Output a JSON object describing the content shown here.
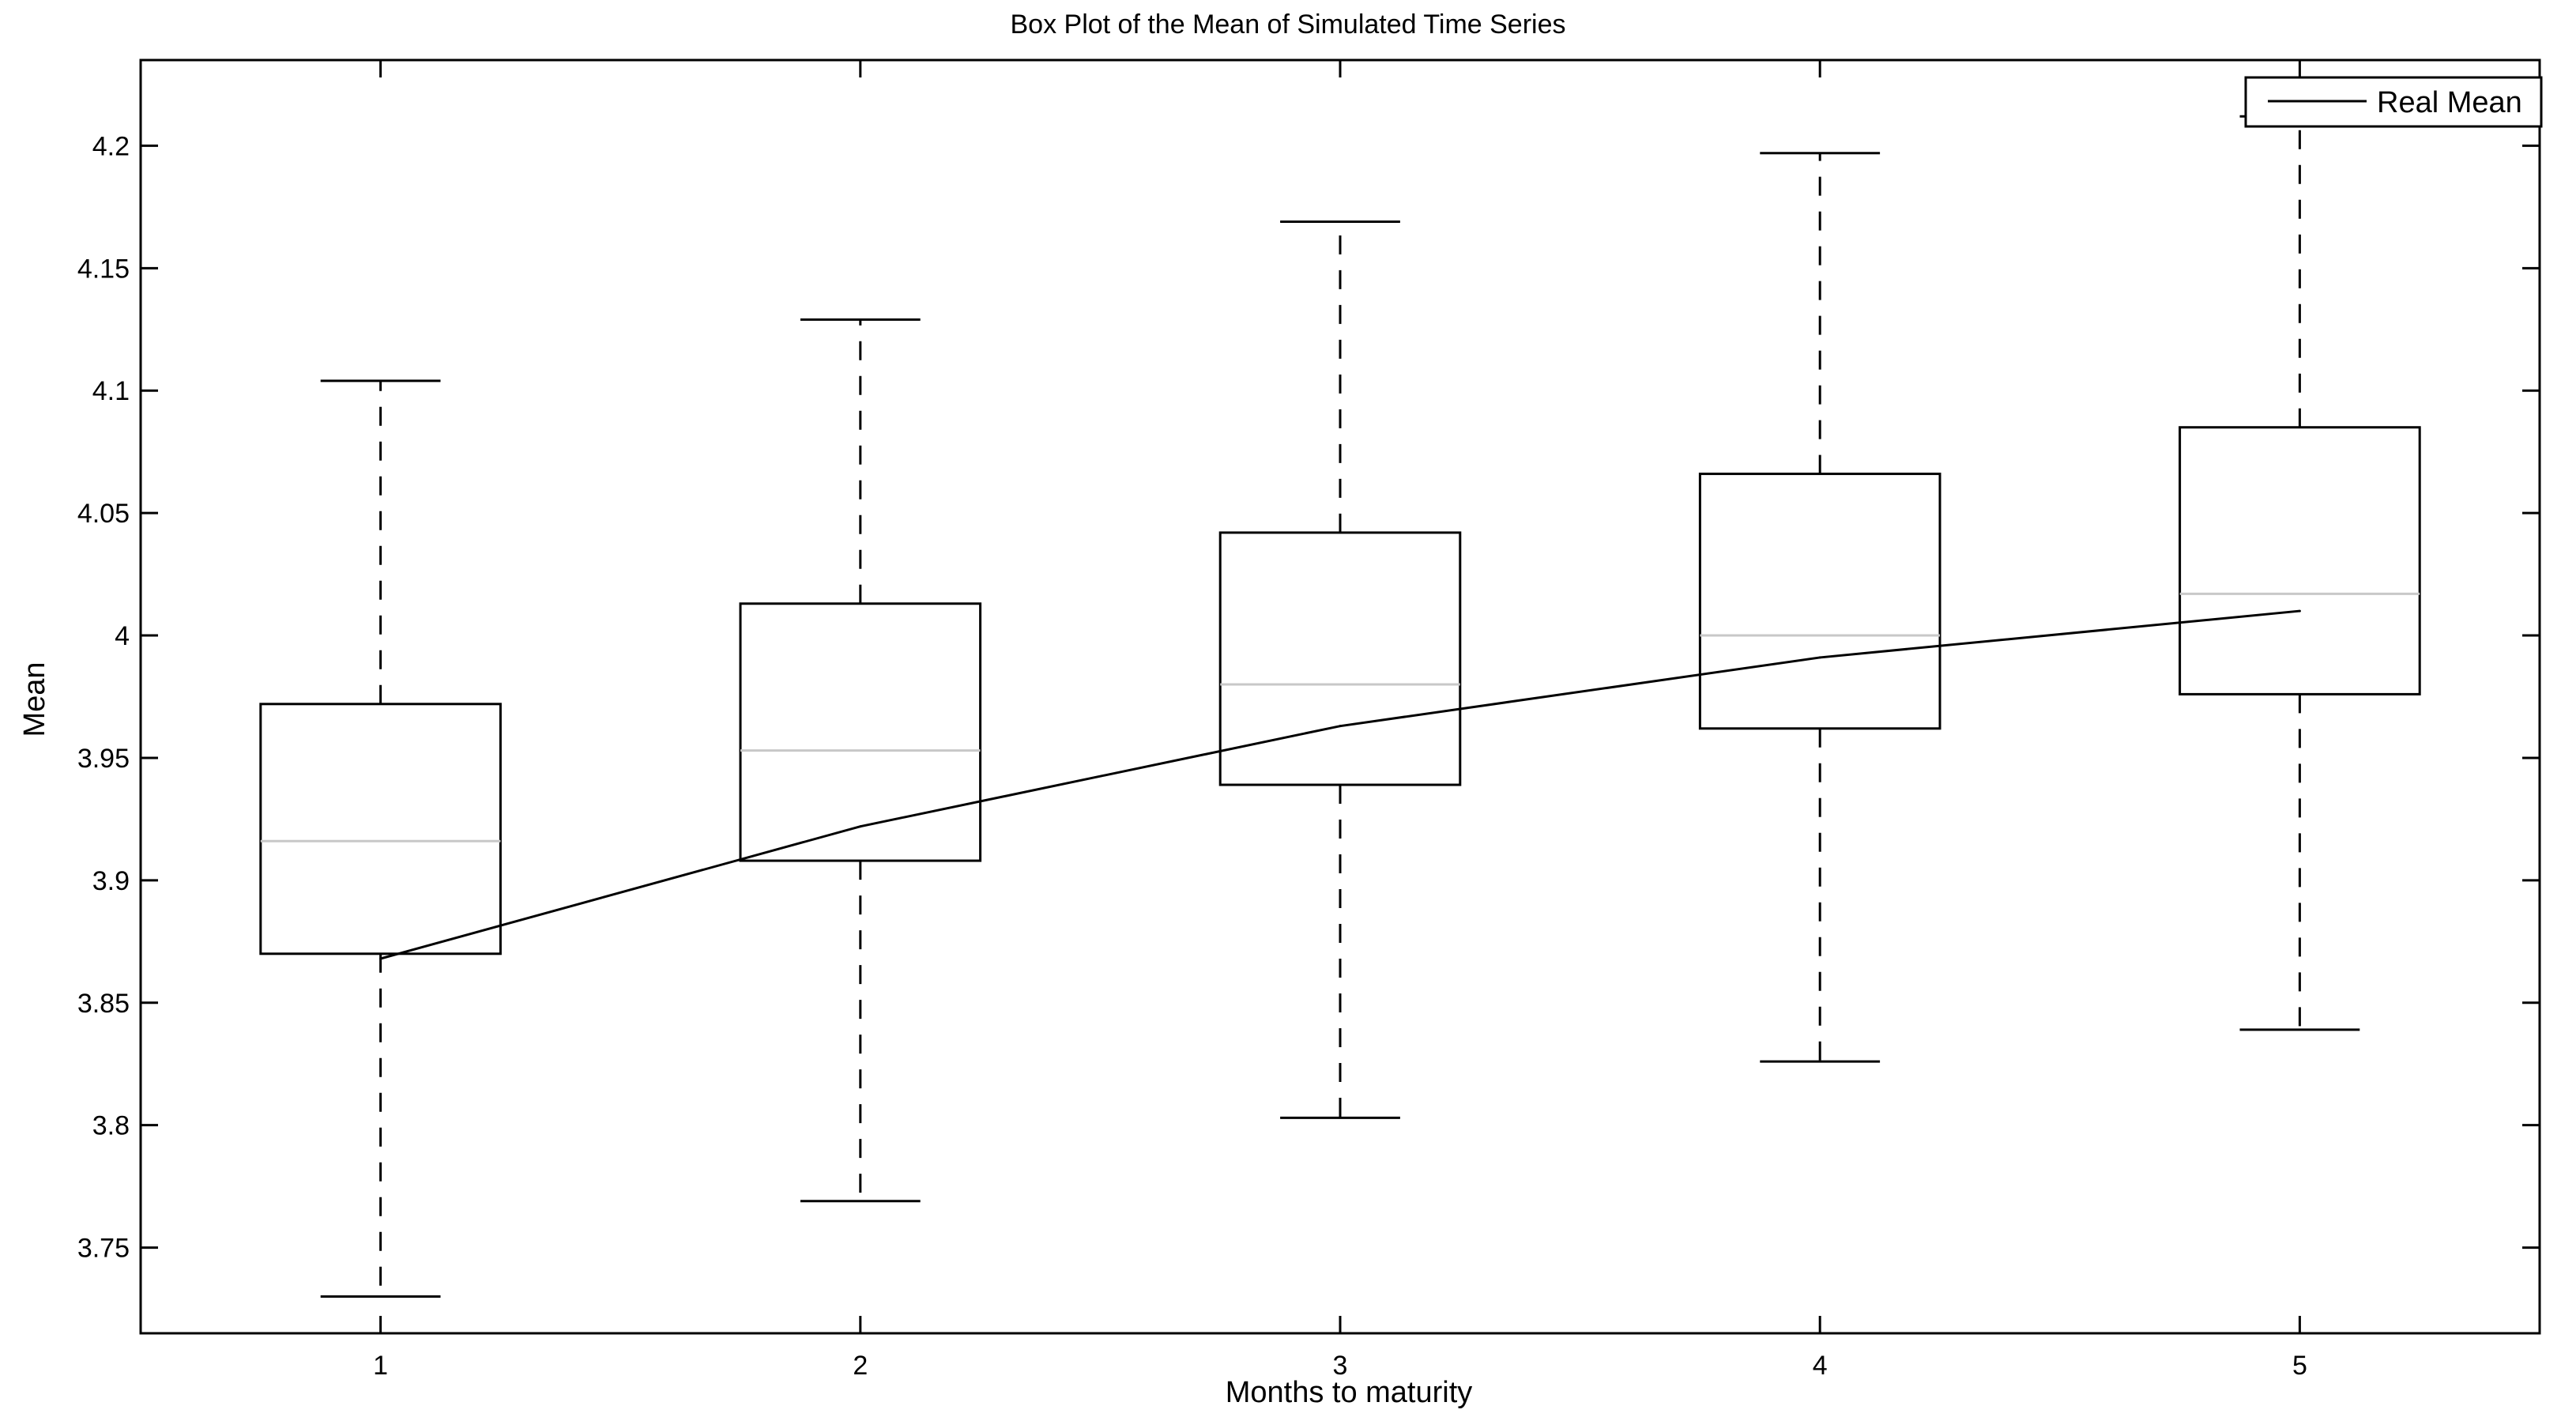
{
  "chart_data": {
    "type": "box",
    "title": "Box Plot of the Mean of Simulated Time Series",
    "xlabel": "Months to maturity",
    "ylabel": "Mean",
    "categories": [
      "1",
      "2",
      "3",
      "4",
      "5"
    ],
    "xlim": [
      0.5,
      5.5
    ],
    "ylim": [
      3.715,
      4.235
    ],
    "yticks": [
      3.75,
      3.8,
      3.85,
      3.9,
      3.95,
      4,
      4.05,
      4.1,
      4.15,
      4.2
    ],
    "ytick_labels": [
      "3.75",
      "3.8",
      "3.85",
      "3.9",
      "3.95",
      "4",
      "4.05",
      "4.1",
      "4.15",
      "4.2"
    ],
    "boxes": [
      {
        "category": "1",
        "lower_whisker": 3.73,
        "q1": 3.87,
        "median": 3.916,
        "q3": 3.972,
        "upper_whisker": 4.104
      },
      {
        "category": "2",
        "lower_whisker": 3.769,
        "q1": 3.908,
        "median": 3.953,
        "q3": 4.013,
        "upper_whisker": 4.129
      },
      {
        "category": "3",
        "lower_whisker": 3.803,
        "q1": 3.939,
        "median": 3.98,
        "q3": 4.042,
        "upper_whisker": 4.169
      },
      {
        "category": "4",
        "lower_whisker": 3.826,
        "q1": 3.962,
        "median": 4.0,
        "q3": 4.066,
        "upper_whisker": 4.197
      },
      {
        "category": "5",
        "lower_whisker": 3.839,
        "q1": 3.976,
        "median": 4.017,
        "q3": 4.085,
        "upper_whisker": 4.212
      }
    ],
    "series": [
      {
        "name": "Real Mean",
        "x": [
          1,
          2,
          3,
          4,
          5
        ],
        "values": [
          3.868,
          3.922,
          3.963,
          3.991,
          4.01
        ]
      }
    ],
    "legend_position": "top-right",
    "grid": false,
    "colors": {
      "box": "#000000",
      "median": "#c8c8c8",
      "whisker": "#000000",
      "line": "#000000"
    }
  }
}
